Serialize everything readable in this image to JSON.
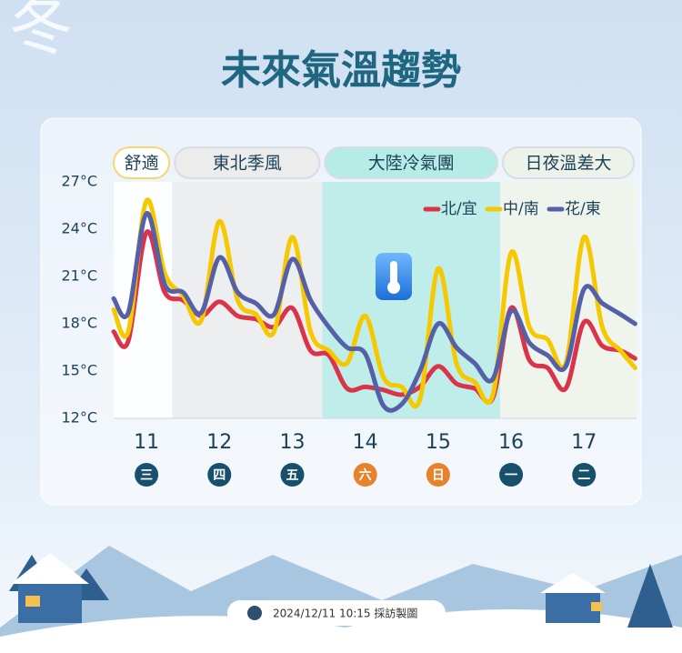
{
  "season_mark": "冬",
  "footer": "2024/12/11 10:15 採訪製圖",
  "chart_data": {
    "type": "line",
    "title": "未來氣溫趨勢",
    "x": [
      10.55,
      10.75,
      11,
      11.25,
      11.5,
      11.75,
      12,
      12.25,
      12.5,
      12.75,
      13,
      13.25,
      13.5,
      13.75,
      14,
      14.25,
      14.5,
      14.75,
      15,
      15.25,
      15.5,
      15.75,
      16,
      16.25,
      16.5,
      16.75,
      17,
      17.25,
      17.5,
      17.7
    ],
    "xlim": [
      10.55,
      17.72
    ],
    "xticks": [
      11,
      12,
      13,
      14,
      15,
      16,
      17
    ],
    "weekdays": [
      {
        "label": "三",
        "color": "#17506b"
      },
      {
        "label": "四",
        "color": "#17506b"
      },
      {
        "label": "五",
        "color": "#17506b"
      },
      {
        "label": "六",
        "color": "#e8822a"
      },
      {
        "label": "日",
        "color": "#e8822a"
      },
      {
        "label": "一",
        "color": "#17506b"
      },
      {
        "label": "二",
        "color": "#17506b"
      }
    ],
    "ylim": [
      12,
      27
    ],
    "yticks": [
      {
        "value": 12,
        "label": "12°C"
      },
      {
        "value": 15,
        "label": "15°C"
      },
      {
        "value": 18,
        "label": "18°C"
      },
      {
        "value": 21,
        "label": "21°C"
      },
      {
        "value": 24,
        "label": "24°C"
      },
      {
        "value": 27,
        "label": "27°C"
      }
    ],
    "periods": [
      {
        "label": "舒適",
        "start": 10.55,
        "end": 11.35,
        "color": "#ffffff"
      },
      {
        "label": "東北季風",
        "start": 11.35,
        "end": 13.41,
        "color": "#ececec"
      },
      {
        "label": "大陸冷氣團",
        "start": 13.41,
        "end": 15.85,
        "color": "#b6ece6"
      },
      {
        "label": "日夜溫差大",
        "start": 15.85,
        "end": 17.72,
        "color": "#eef3ea"
      }
    ],
    "legend": "upper right",
    "series": [
      {
        "name": "北/宜",
        "color": "#d9344a",
        "values": [
          17.5,
          16.9,
          23.8,
          20.0,
          19.5,
          18.5,
          19.4,
          18.5,
          18.3,
          17.8,
          19.0,
          16.3,
          16.0,
          13.9,
          14.0,
          13.8,
          13.5,
          14.0,
          15.3,
          14.2,
          13.9,
          13.3,
          19.0,
          15.7,
          15.2,
          13.9,
          18.1,
          16.6,
          16.3,
          15.8
        ]
      },
      {
        "name": "中/南",
        "color": "#f5c800",
        "values": [
          18.9,
          17.5,
          25.8,
          21.2,
          19.8,
          18.2,
          24.5,
          19.5,
          18.6,
          17.5,
          23.5,
          17.5,
          16.3,
          15.5,
          18.5,
          14.6,
          14.0,
          13.2,
          21.5,
          15.5,
          14.3,
          13.5,
          22.5,
          17.8,
          17.0,
          15.5,
          23.5,
          17.8,
          16.3,
          15.2
        ]
      },
      {
        "name": "花/東",
        "color": "#5560a8",
        "values": [
          19.6,
          18.7,
          25.0,
          20.5,
          20.0,
          18.7,
          22.2,
          20.0,
          19.3,
          18.6,
          22.1,
          19.5,
          17.8,
          16.5,
          16.1,
          12.8,
          12.9,
          15.0,
          18.0,
          16.5,
          15.5,
          14.5,
          18.8,
          16.8,
          16.0,
          15.3,
          20.2,
          19.3,
          18.6,
          18.0
        ]
      }
    ]
  }
}
